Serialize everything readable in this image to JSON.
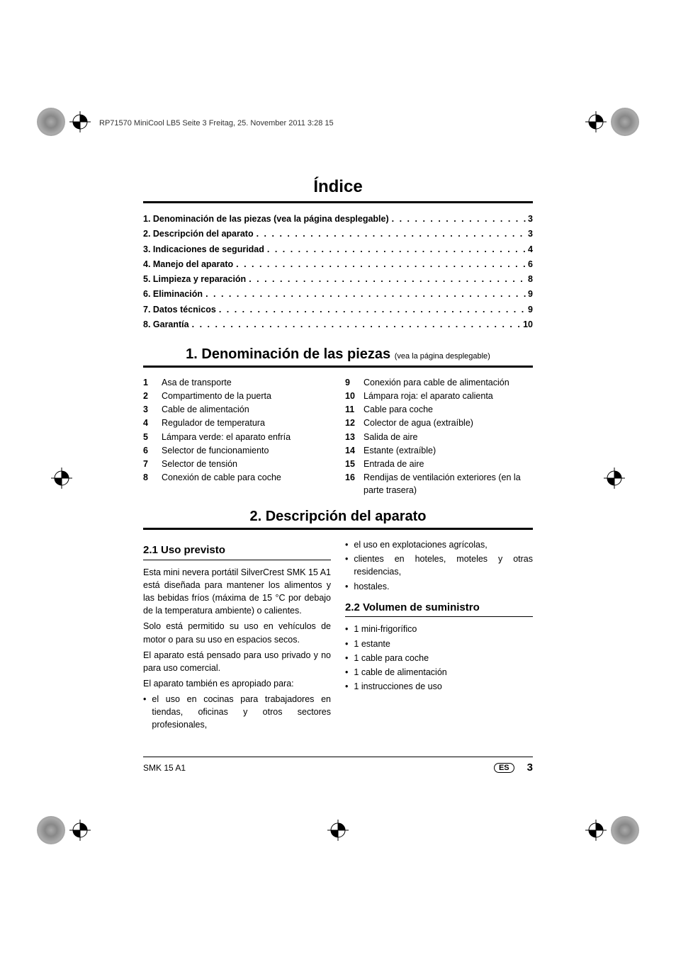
{
  "header_line": "RP71570 MiniCool LB5  Seite 3  Freitag, 25. November 2011  3:28 15",
  "title": "Índice",
  "toc": [
    {
      "label": "1. Denominación de las piezas (vea la página desplegable)",
      "page": "3"
    },
    {
      "label": "2. Descripción del aparato",
      "page": "3"
    },
    {
      "label": "3. Indicaciones de seguridad",
      "page": "4"
    },
    {
      "label": "4. Manejo del aparato",
      "page": "6"
    },
    {
      "label": "5. Limpieza y reparación",
      "page": "8"
    },
    {
      "label": "6. Eliminación",
      "page": "9"
    },
    {
      "label": "7. Datos técnicos",
      "page": "9"
    },
    {
      "label": "8. Garantía",
      "page": "10"
    }
  ],
  "section1": {
    "title": "1. Denominación de las piezas",
    "subtitle": "(vea la página desplegable)",
    "left": [
      {
        "n": "1",
        "t": "Asa de transporte"
      },
      {
        "n": "2",
        "t": "Compartimento de la puerta"
      },
      {
        "n": "3",
        "t": "Cable de alimentación"
      },
      {
        "n": "4",
        "t": "Regulador de temperatura"
      },
      {
        "n": "5",
        "t": "Lámpara verde: el aparato enfría"
      },
      {
        "n": "6",
        "t": "Selector de funcionamiento"
      },
      {
        "n": "7",
        "t": "Selector de tensión"
      },
      {
        "n": "8",
        "t": "Conexión de cable para coche"
      }
    ],
    "right": [
      {
        "n": "9",
        "t": "Conexión para cable de alimentación"
      },
      {
        "n": "10",
        "t": "Lámpara roja: el aparato calienta"
      },
      {
        "n": "11",
        "t": "Cable para coche"
      },
      {
        "n": "12",
        "t": "Colector de agua (extraíble)"
      },
      {
        "n": "13",
        "t": "Salida de aire"
      },
      {
        "n": "14",
        "t": "Estante (extraíble)"
      },
      {
        "n": "15",
        "t": "Entrada de aire"
      },
      {
        "n": "16",
        "t": "Rendijas de ventilación exteriores (en la parte trasera)"
      }
    ]
  },
  "section2": {
    "title": "2. Descripción del aparato",
    "s21_title": "2.1 Uso previsto",
    "s21_p1": "Esta mini nevera portátil SilverCrest SMK 15 A1 está diseñada para mantener los alimentos y las bebidas fríos (máxima de 15 °C por debajo de la temperatura ambiente) o calientes.",
    "s21_p2": "Solo está permitido su uso en vehículos de motor o para su uso en espacios secos.",
    "s21_p3": "El aparato está pensado para uso privado y no para uso comercial.",
    "s21_p4": "El aparato también es apropiado para:",
    "s21_b1": "el uso en cocinas para trabajadores en tiendas, oficinas y otros sectores profesionales,",
    "s21_b2": "el uso en explotaciones agrícolas,",
    "s21_b3": "clientes en hoteles, moteles y otras residencias,",
    "s21_b4": "hostales.",
    "s22_title": "2.2 Volumen de suministro",
    "s22_items": [
      "1 mini-frigorífico",
      "1 estante",
      "1 cable para coche",
      "1 cable de alimentación",
      "1 instrucciones de uso"
    ]
  },
  "footer": {
    "model": "SMK 15 A1",
    "lang": "ES",
    "page": "3"
  },
  "colors": {
    "text": "#000000",
    "bg": "#ffffff",
    "rule": "#000000"
  }
}
